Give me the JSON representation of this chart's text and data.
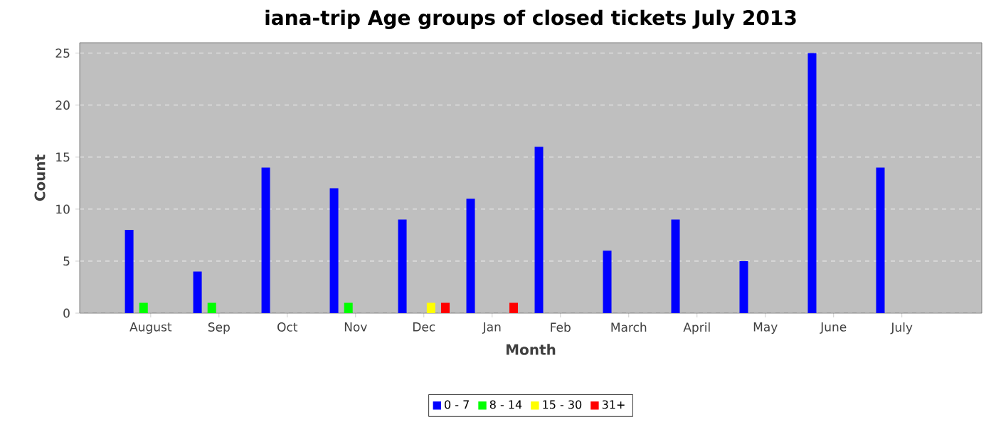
{
  "chart_data": {
    "type": "bar",
    "title": "iana-trip Age groups of closed tickets July 2013",
    "xlabel": "Month",
    "ylabel": "Count",
    "categories": [
      "August",
      "Sep",
      "Oct",
      "Nov",
      "Dec",
      "Jan",
      "Feb",
      "March",
      "April",
      "May",
      "June",
      "July"
    ],
    "series": [
      {
        "name": "0 - 7",
        "color": "#0000ff",
        "values": [
          8,
          4,
          14,
          12,
          9,
          11,
          16,
          6,
          9,
          5,
          25,
          14
        ]
      },
      {
        "name": "8 - 14",
        "color": "#00ff00",
        "values": [
          1,
          1,
          0,
          1,
          0,
          0,
          0,
          0,
          0,
          0,
          0,
          0
        ]
      },
      {
        "name": "15 - 30",
        "color": "#ffff00",
        "values": [
          0,
          0,
          0,
          0,
          1,
          0,
          0,
          0,
          0,
          0,
          0,
          0
        ]
      },
      {
        "name": "31+",
        "color": "#ff0000",
        "values": [
          0,
          0,
          0,
          0,
          1,
          1,
          0,
          0,
          0,
          0,
          0,
          0
        ]
      }
    ],
    "ylim": [
      0,
      26
    ],
    "yticks": [
      0,
      5,
      10,
      15,
      20,
      25
    ],
    "grid": "y",
    "legend": "bottom"
  }
}
